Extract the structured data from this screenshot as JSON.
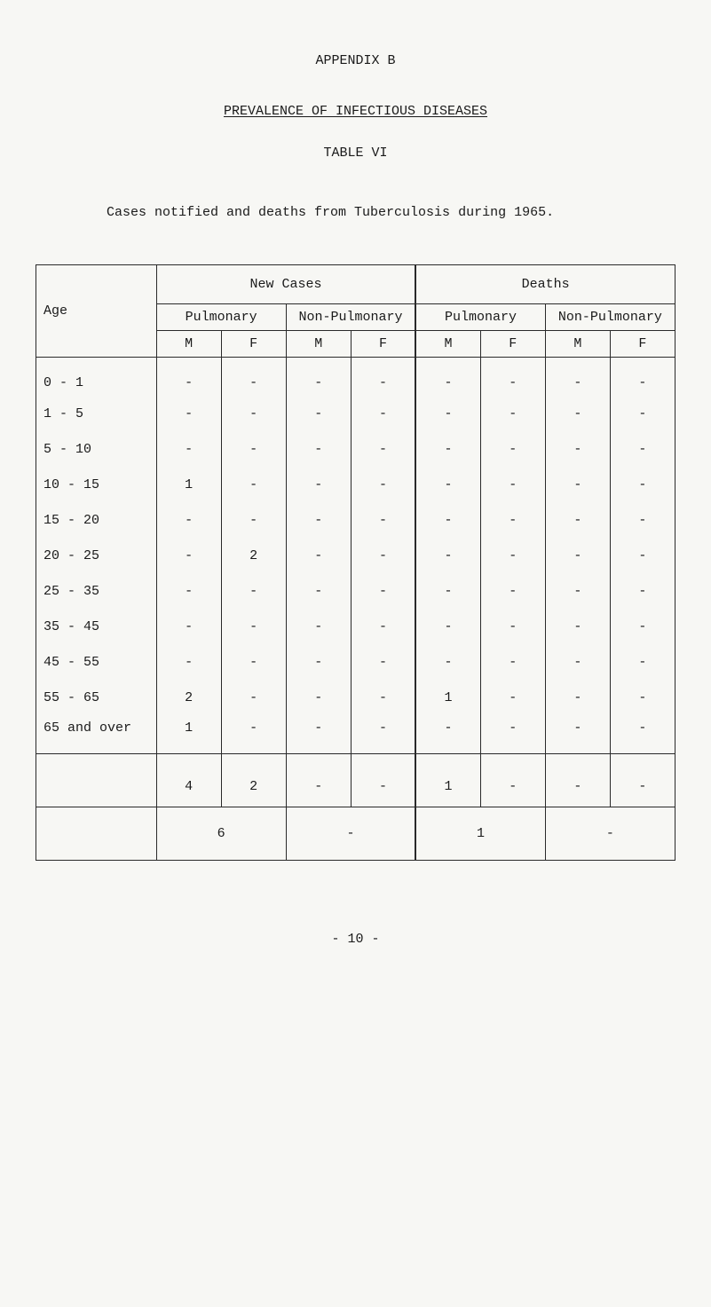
{
  "heading": "APPENDIX  B",
  "subtitle": "PREVALENCE OF INFECTIOUS DISEASES",
  "table_label": "TABLE VI",
  "caption": "Cases notified and deaths from Tuberculosis during 1965.",
  "headers": {
    "age": "Age",
    "new_cases": "New Cases",
    "deaths": "Deaths",
    "pulmonary": "Pulmonary",
    "non_pulmonary": "Non-Pulmonary",
    "m": "M",
    "f": "F"
  },
  "rows": [
    {
      "age": "0 - 1",
      "pm": "-",
      "pf": "-",
      "npm": "-",
      "npf": "-",
      "dpm": "-",
      "dpf": "-",
      "dnpm": "-",
      "dnpf": "-"
    },
    {
      "age": "1 - 5",
      "pm": "-",
      "pf": "-",
      "npm": "-",
      "npf": "-",
      "dpm": "-",
      "dpf": "-",
      "dnpm": "-",
      "dnpf": "-"
    },
    {
      "age": "5 - 10",
      "pm": "-",
      "pf": "-",
      "npm": "-",
      "npf": "-",
      "dpm": "-",
      "dpf": "-",
      "dnpm": "-",
      "dnpf": "-"
    },
    {
      "age": "10 - 15",
      "pm": "1",
      "pf": "-",
      "npm": "-",
      "npf": "-",
      "dpm": "-",
      "dpf": "-",
      "dnpm": "-",
      "dnpf": "-"
    },
    {
      "age": "15 - 20",
      "pm": "-",
      "pf": "-",
      "npm": "-",
      "npf": "-",
      "dpm": "-",
      "dpf": "-",
      "dnpm": "-",
      "dnpf": "-"
    },
    {
      "age": "20 - 25",
      "pm": "-",
      "pf": "2",
      "npm": "-",
      "npf": "-",
      "dpm": "-",
      "dpf": "-",
      "dnpm": "-",
      "dnpf": "-"
    },
    {
      "age": "25 - 35",
      "pm": "-",
      "pf": "-",
      "npm": "-",
      "npf": "-",
      "dpm": "-",
      "dpf": "-",
      "dnpm": "-",
      "dnpf": "-"
    },
    {
      "age": "35 - 45",
      "pm": "-",
      "pf": "-",
      "npm": "-",
      "npf": "-",
      "dpm": "-",
      "dpf": "-",
      "dnpm": "-",
      "dnpf": "-"
    },
    {
      "age": "45 - 55",
      "pm": "-",
      "pf": "-",
      "npm": "-",
      "npf": "-",
      "dpm": "-",
      "dpf": "-",
      "dnpm": "-",
      "dnpf": "-"
    },
    {
      "age": "55 - 65",
      "pm": "2",
      "pf": "-",
      "npm": "-",
      "npf": "-",
      "dpm": "1",
      "dpf": "-",
      "dnpm": "-",
      "dnpf": "-"
    },
    {
      "age": "65 and over",
      "pm": "1",
      "pf": "-",
      "npm": "-",
      "npf": "-",
      "dpm": "-",
      "dpf": "-",
      "dnpm": "-",
      "dnpf": "-"
    }
  ],
  "subtotal": {
    "age": "",
    "pm": "4",
    "pf": "2",
    "npm": "-",
    "npf": "-",
    "dpm": "1",
    "dpf": "-",
    "dnpm": "-",
    "dnpf": "-"
  },
  "grand": {
    "pulmonary": "6",
    "non_pulmonary": "-",
    "d_pulmonary": "1",
    "d_non_pulmonary": "-"
  },
  "footer": "- 10 -"
}
